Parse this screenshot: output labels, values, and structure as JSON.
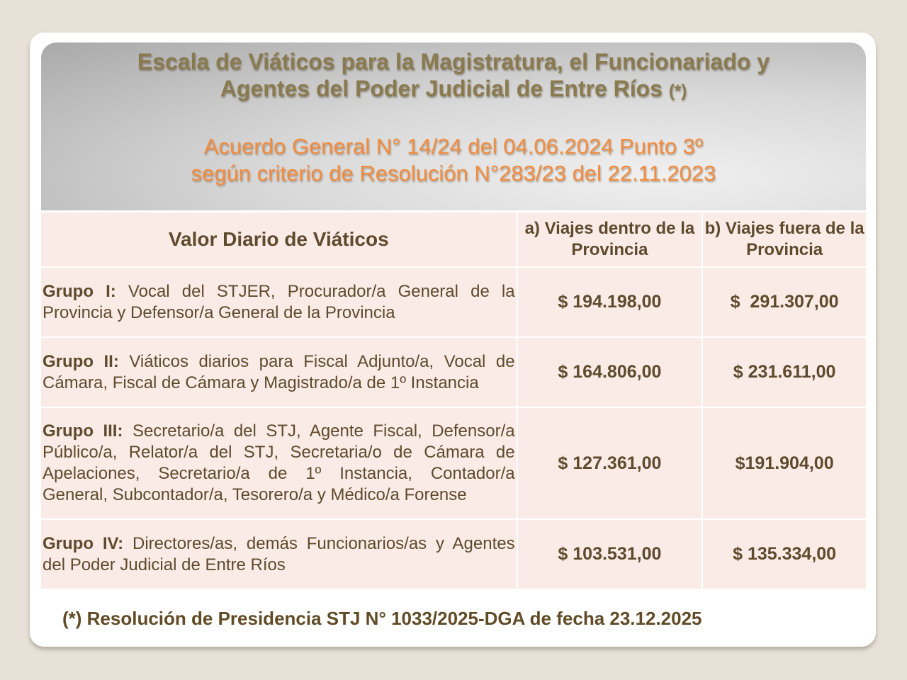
{
  "header": {
    "title_line1": "Escala de Viáticos para la Magistratura, el Funcionariado y",
    "title_line2": "Agentes del Poder Judicial de Entre Ríos",
    "title_mark": "(*)",
    "subtitle_line1": "Acuerdo General N° 14/24 del 04.06.2024 Punto 3º",
    "subtitle_line2": "según criterio de Resolución N°283/23 del 22.11.2023"
  },
  "table": {
    "columns": [
      "Valor Diario de Viáticos",
      "a) Viajes dentro de la Provincia",
      "b) Viajes fuera de la Provincia"
    ],
    "rows": [
      {
        "group": "Grupo I:",
        "desc": "Vocal del STJER, Procurador/a General de la Provincia y Defensor/a General de la Provincia",
        "inside": "$ 194.198,00",
        "outside": "$  291.307,00"
      },
      {
        "group": "Grupo II:",
        "desc": "Viáticos diarios para Fiscal Adjunto/a, Vocal de Cámara, Fiscal de Cámara y Magistrado/a de 1º Instancia",
        "inside": "$ 164.806,00",
        "outside": "$ 231.611,00"
      },
      {
        "group": "Grupo III:",
        "desc": "Secretario/a del STJ, Agente Fiscal, Defensor/a Público/a, Relator/a del STJ, Secretaria/o de Cámara de Apelaciones, Secretario/a de 1º Instancia, Contador/a General, Subcontador/a, Tesorero/a y Médico/a Forense",
        "inside": "$ 127.361,00",
        "outside": "$191.904,00"
      },
      {
        "group": "Grupo IV:",
        "desc": "Directores/as, demás Funcionarios/as y Agentes del Poder Judicial de Entre Ríos",
        "inside": "$ 103.531,00",
        "outside": "$ 135.334,00"
      }
    ]
  },
  "footnote": "(*) Resolución de Presidencia STJ N° 1033/2025-DGA de fecha 23.12.2025"
}
